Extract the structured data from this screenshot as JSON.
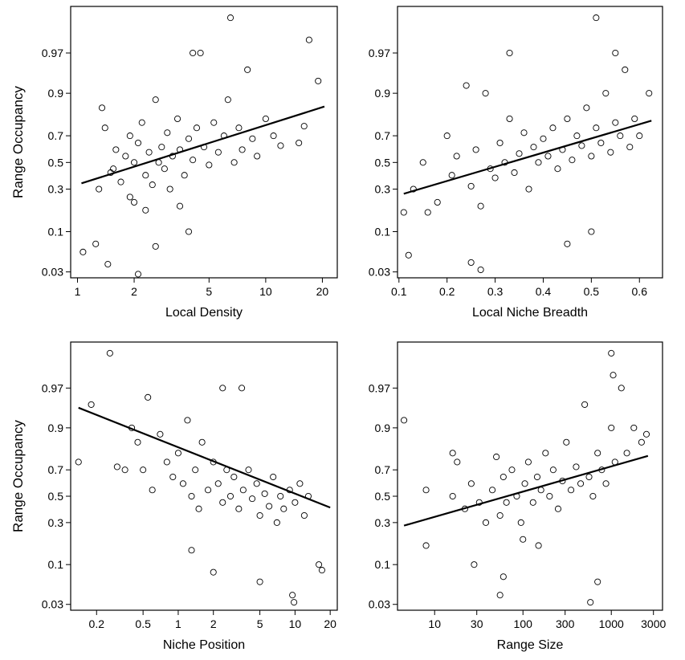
{
  "chart_data": [
    {
      "type": "scatter",
      "xlabel": "Local Density",
      "ylabel": "Range Occupancy",
      "xscale": "log",
      "yscale": "logit",
      "xlim": [
        0.92,
        24.0
      ],
      "ylim": [
        0.025,
        0.993
      ],
      "xticks": [
        1,
        2,
        5,
        10,
        20
      ],
      "xtick_labels": [
        "1",
        "2",
        "5",
        "10",
        "20"
      ],
      "yticks": [
        0.03,
        0.1,
        0.3,
        0.5,
        0.7,
        0.9,
        0.97
      ],
      "ytick_labels": [
        "0.03",
        "0.1",
        "0.3",
        "0.5",
        "0.7",
        "0.9",
        "0.97"
      ],
      "fit_line": {
        "x": [
          1.05,
          20.5
        ],
        "y": [
          0.34,
          0.855
        ]
      },
      "points": [
        [
          1.07,
          0.055
        ],
        [
          1.25,
          0.07
        ],
        [
          1.45,
          0.038
        ],
        [
          1.35,
          0.85
        ],
        [
          1.55,
          0.45
        ],
        [
          1.3,
          0.3
        ],
        [
          1.4,
          0.75
        ],
        [
          1.5,
          0.42
        ],
        [
          1.6,
          0.6
        ],
        [
          1.7,
          0.35
        ],
        [
          1.8,
          0.55
        ],
        [
          1.9,
          0.7
        ],
        [
          2.0,
          0.5
        ],
        [
          2.0,
          0.22
        ],
        [
          2.1,
          0.65
        ],
        [
          2.2,
          0.78
        ],
        [
          2.3,
          0.4
        ],
        [
          2.4,
          0.58
        ],
        [
          2.5,
          0.33
        ],
        [
          2.6,
          0.88
        ],
        [
          2.7,
          0.5
        ],
        [
          2.8,
          0.62
        ],
        [
          2.9,
          0.45
        ],
        [
          3.0,
          0.72
        ],
        [
          3.1,
          0.3
        ],
        [
          3.2,
          0.55
        ],
        [
          3.4,
          0.8
        ],
        [
          3.5,
          0.6
        ],
        [
          3.7,
          0.4
        ],
        [
          3.9,
          0.68
        ],
        [
          4.1,
          0.52
        ],
        [
          4.3,
          0.75
        ],
        [
          4.5,
          0.97
        ],
        [
          4.7,
          0.62
        ],
        [
          5.0,
          0.48
        ],
        [
          5.3,
          0.78
        ],
        [
          5.6,
          0.58
        ],
        [
          6.0,
          0.7
        ],
        [
          6.3,
          0.88
        ],
        [
          6.8,
          0.5
        ],
        [
          7.2,
          0.75
        ],
        [
          7.5,
          0.6
        ],
        [
          8.0,
          0.95
        ],
        [
          8.5,
          0.68
        ],
        [
          9.0,
          0.55
        ],
        [
          10.0,
          0.8
        ],
        [
          11.0,
          0.7
        ],
        [
          12.0,
          0.63
        ],
        [
          15.0,
          0.65
        ],
        [
          16.0,
          0.76
        ],
        [
          17.0,
          0.98
        ],
        [
          19.0,
          0.93
        ],
        [
          2.1,
          0.028
        ],
        [
          3.9,
          0.1
        ],
        [
          2.6,
          0.065
        ],
        [
          3.5,
          0.2
        ],
        [
          2.3,
          0.18
        ],
        [
          1.9,
          0.25
        ],
        [
          6.5,
          0.99
        ],
        [
          4.1,
          0.97
        ]
      ]
    },
    {
      "type": "scatter",
      "xlabel": "Local Niche Breadth",
      "ylabel": "",
      "xscale": "linear",
      "yscale": "logit",
      "xlim": [
        0.097,
        0.648
      ],
      "ylim": [
        0.025,
        0.993
      ],
      "xticks": [
        0.1,
        0.2,
        0.3,
        0.4,
        0.5,
        0.6
      ],
      "xtick_labels": [
        "0.1",
        "0.2",
        "0.3",
        "0.4",
        "0.5",
        "0.6"
      ],
      "yticks": [
        0.03,
        0.1,
        0.3,
        0.5,
        0.7,
        0.9,
        0.97
      ],
      "ytick_labels": [
        "0.03",
        "0.1",
        "0.3",
        "0.5",
        "0.7",
        "0.9",
        "0.97"
      ],
      "fit_line": {
        "x": [
          0.11,
          0.625
        ],
        "y": [
          0.27,
          0.79
        ]
      },
      "points": [
        [
          0.11,
          0.17
        ],
        [
          0.12,
          0.05
        ],
        [
          0.13,
          0.3
        ],
        [
          0.15,
          0.5
        ],
        [
          0.16,
          0.17
        ],
        [
          0.18,
          0.22
        ],
        [
          0.2,
          0.7
        ],
        [
          0.21,
          0.4
        ],
        [
          0.22,
          0.55
        ],
        [
          0.24,
          0.92
        ],
        [
          0.25,
          0.32
        ],
        [
          0.26,
          0.6
        ],
        [
          0.27,
          0.2
        ],
        [
          0.28,
          0.9
        ],
        [
          0.29,
          0.45
        ],
        [
          0.3,
          0.38
        ],
        [
          0.31,
          0.65
        ],
        [
          0.32,
          0.5
        ],
        [
          0.33,
          0.8
        ],
        [
          0.34,
          0.42
        ],
        [
          0.35,
          0.57
        ],
        [
          0.36,
          0.72
        ],
        [
          0.37,
          0.3
        ],
        [
          0.38,
          0.62
        ],
        [
          0.39,
          0.5
        ],
        [
          0.4,
          0.68
        ],
        [
          0.41,
          0.55
        ],
        [
          0.42,
          0.75
        ],
        [
          0.43,
          0.45
        ],
        [
          0.44,
          0.6
        ],
        [
          0.45,
          0.8
        ],
        [
          0.46,
          0.52
        ],
        [
          0.47,
          0.7
        ],
        [
          0.48,
          0.63
        ],
        [
          0.49,
          0.85
        ],
        [
          0.5,
          0.55
        ],
        [
          0.51,
          0.75
        ],
        [
          0.52,
          0.65
        ],
        [
          0.53,
          0.9
        ],
        [
          0.54,
          0.58
        ],
        [
          0.55,
          0.78
        ],
        [
          0.56,
          0.7
        ],
        [
          0.57,
          0.95
        ],
        [
          0.58,
          0.62
        ],
        [
          0.59,
          0.8
        ],
        [
          0.6,
          0.7
        ],
        [
          0.62,
          0.9
        ],
        [
          0.25,
          0.04
        ],
        [
          0.27,
          0.032
        ],
        [
          0.45,
          0.07
        ],
        [
          0.5,
          0.1
        ],
        [
          0.51,
          0.99
        ],
        [
          0.55,
          0.97
        ],
        [
          0.33,
          0.97
        ]
      ]
    },
    {
      "type": "scatter",
      "xlabel": "Niche Position",
      "ylabel": "Range Occupancy",
      "xscale": "log",
      "yscale": "logit",
      "xlim": [
        0.12,
        23.0
      ],
      "ylim": [
        0.025,
        0.993
      ],
      "xticks": [
        0.2,
        0.5,
        1,
        2,
        5,
        10,
        20
      ],
      "xtick_labels": [
        "0.2",
        "0.5",
        "1",
        "2",
        "5",
        "10",
        "20"
      ],
      "yticks": [
        0.03,
        0.1,
        0.3,
        0.5,
        0.7,
        0.9,
        0.97
      ],
      "ytick_labels": [
        "0.03",
        "0.1",
        "0.3",
        "0.5",
        "0.7",
        "0.9",
        "0.97"
      ],
      "fit_line": {
        "x": [
          0.14,
          20.0
        ],
        "y": [
          0.945,
          0.41
        ]
      },
      "points": [
        [
          0.14,
          0.75
        ],
        [
          0.18,
          0.95
        ],
        [
          0.26,
          0.99
        ],
        [
          0.3,
          0.72
        ],
        [
          0.35,
          0.7
        ],
        [
          0.4,
          0.9
        ],
        [
          0.45,
          0.85
        ],
        [
          0.5,
          0.7
        ],
        [
          0.55,
          0.96
        ],
        [
          0.6,
          0.55
        ],
        [
          0.7,
          0.88
        ],
        [
          0.8,
          0.75
        ],
        [
          0.9,
          0.65
        ],
        [
          1.0,
          0.8
        ],
        [
          1.1,
          0.6
        ],
        [
          1.2,
          0.92
        ],
        [
          1.3,
          0.5
        ],
        [
          1.4,
          0.7
        ],
        [
          1.5,
          0.4
        ],
        [
          1.6,
          0.85
        ],
        [
          1.8,
          0.55
        ],
        [
          2.0,
          0.75
        ],
        [
          2.2,
          0.6
        ],
        [
          2.4,
          0.45
        ],
        [
          2.6,
          0.7
        ],
        [
          2.8,
          0.5
        ],
        [
          3.0,
          0.65
        ],
        [
          3.3,
          0.4
        ],
        [
          3.6,
          0.55
        ],
        [
          4.0,
          0.7
        ],
        [
          4.3,
          0.48
        ],
        [
          4.7,
          0.6
        ],
        [
          5.0,
          0.35
        ],
        [
          5.5,
          0.52
        ],
        [
          6.0,
          0.42
        ],
        [
          6.5,
          0.65
        ],
        [
          7.0,
          0.3
        ],
        [
          7.5,
          0.5
        ],
        [
          8.0,
          0.4
        ],
        [
          9.0,
          0.55
        ],
        [
          10.0,
          0.45
        ],
        [
          11.0,
          0.6
        ],
        [
          12.0,
          0.35
        ],
        [
          13.0,
          0.5
        ],
        [
          5.0,
          0.06
        ],
        [
          9.5,
          0.04
        ],
        [
          9.8,
          0.032
        ],
        [
          16.0,
          0.1
        ],
        [
          17.0,
          0.085
        ],
        [
          1.3,
          0.15
        ],
        [
          2.0,
          0.08
        ],
        [
          3.5,
          0.97
        ],
        [
          2.4,
          0.97
        ]
      ]
    },
    {
      "type": "scatter",
      "xlabel": "Range Size",
      "ylabel": "",
      "xscale": "log",
      "yscale": "logit",
      "xlim": [
        3.8,
        3800.0
      ],
      "ylim": [
        0.025,
        0.993
      ],
      "xticks": [
        10,
        30,
        100,
        300,
        1000,
        3000
      ],
      "xtick_labels": [
        "10",
        "30",
        "100",
        "300",
        "1000",
        "3000"
      ],
      "yticks": [
        0.03,
        0.1,
        0.3,
        0.5,
        0.7,
        0.9,
        0.97
      ],
      "ytick_labels": [
        "0.03",
        "0.1",
        "0.3",
        "0.5",
        "0.7",
        "0.9",
        "0.97"
      ],
      "fit_line": {
        "x": [
          4.5,
          2600.0
        ],
        "y": [
          0.28,
          0.785
        ]
      },
      "points": [
        [
          4.5,
          0.92
        ],
        [
          8.0,
          0.17
        ],
        [
          8.0,
          0.55
        ],
        [
          16.0,
          0.5
        ],
        [
          16.0,
          0.8
        ],
        [
          18.0,
          0.75
        ],
        [
          22.0,
          0.4
        ],
        [
          26.0,
          0.6
        ],
        [
          28.0,
          0.1
        ],
        [
          32.0,
          0.45
        ],
        [
          38.0,
          0.3
        ],
        [
          45.0,
          0.55
        ],
        [
          50.0,
          0.78
        ],
        [
          55.0,
          0.35
        ],
        [
          60.0,
          0.65
        ],
        [
          65.0,
          0.45
        ],
        [
          75.0,
          0.7
        ],
        [
          85.0,
          0.5
        ],
        [
          95.0,
          0.3
        ],
        [
          105.0,
          0.6
        ],
        [
          115.0,
          0.75
        ],
        [
          130.0,
          0.45
        ],
        [
          145.0,
          0.65
        ],
        [
          160.0,
          0.55
        ],
        [
          180.0,
          0.8
        ],
        [
          200.0,
          0.5
        ],
        [
          220.0,
          0.7
        ],
        [
          250.0,
          0.4
        ],
        [
          280.0,
          0.62
        ],
        [
          310.0,
          0.85
        ],
        [
          350.0,
          0.55
        ],
        [
          400.0,
          0.72
        ],
        [
          450.0,
          0.6
        ],
        [
          500.0,
          0.95
        ],
        [
          560.0,
          0.65
        ],
        [
          620.0,
          0.5
        ],
        [
          700.0,
          0.8
        ],
        [
          780.0,
          0.7
        ],
        [
          870.0,
          0.6
        ],
        [
          1000.0,
          0.9
        ],
        [
          1100.0,
          0.75
        ],
        [
          1300.0,
          0.97
        ],
        [
          1500.0,
          0.8
        ],
        [
          1800.0,
          0.9
        ],
        [
          2200.0,
          0.85
        ],
        [
          2500.0,
          0.88
        ],
        [
          55.0,
          0.04
        ],
        [
          60.0,
          0.07
        ],
        [
          580.0,
          0.032
        ],
        [
          700.0,
          0.06
        ],
        [
          100.0,
          0.2
        ],
        [
          150.0,
          0.17
        ],
        [
          1000.0,
          0.99
        ],
        [
          1050.0,
          0.98
        ]
      ]
    }
  ]
}
